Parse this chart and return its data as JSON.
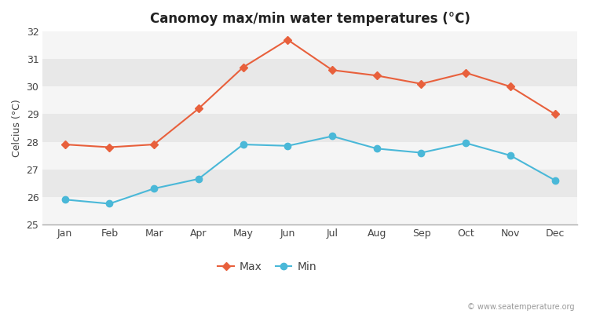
{
  "title": "Canomoy max/min water temperatures (°C)",
  "ylabel": "Celcius (°C)",
  "months": [
    "Jan",
    "Feb",
    "Mar",
    "Apr",
    "May",
    "Jun",
    "Jul",
    "Aug",
    "Sep",
    "Oct",
    "Nov",
    "Dec"
  ],
  "max_temps": [
    27.9,
    27.8,
    27.9,
    29.2,
    30.7,
    31.7,
    30.6,
    30.4,
    30.1,
    30.5,
    30.0,
    29.0
  ],
  "min_temps": [
    25.9,
    25.75,
    26.3,
    26.65,
    27.9,
    27.85,
    28.2,
    27.75,
    27.6,
    27.95,
    27.5,
    26.6
  ],
  "max_color": "#e8603c",
  "min_color": "#4ab8d8",
  "bg_color": "#ffffff",
  "band_colors": [
    "#f5f5f5",
    "#e8e8e8"
  ],
  "ylim": [
    25,
    32
  ],
  "yticks": [
    25,
    26,
    27,
    28,
    29,
    30,
    31,
    32
  ],
  "legend_labels": [
    "Max",
    "Min"
  ],
  "watermark": "© www.seatemperature.org",
  "title_fontsize": 12,
  "label_fontsize": 9,
  "tick_fontsize": 9
}
